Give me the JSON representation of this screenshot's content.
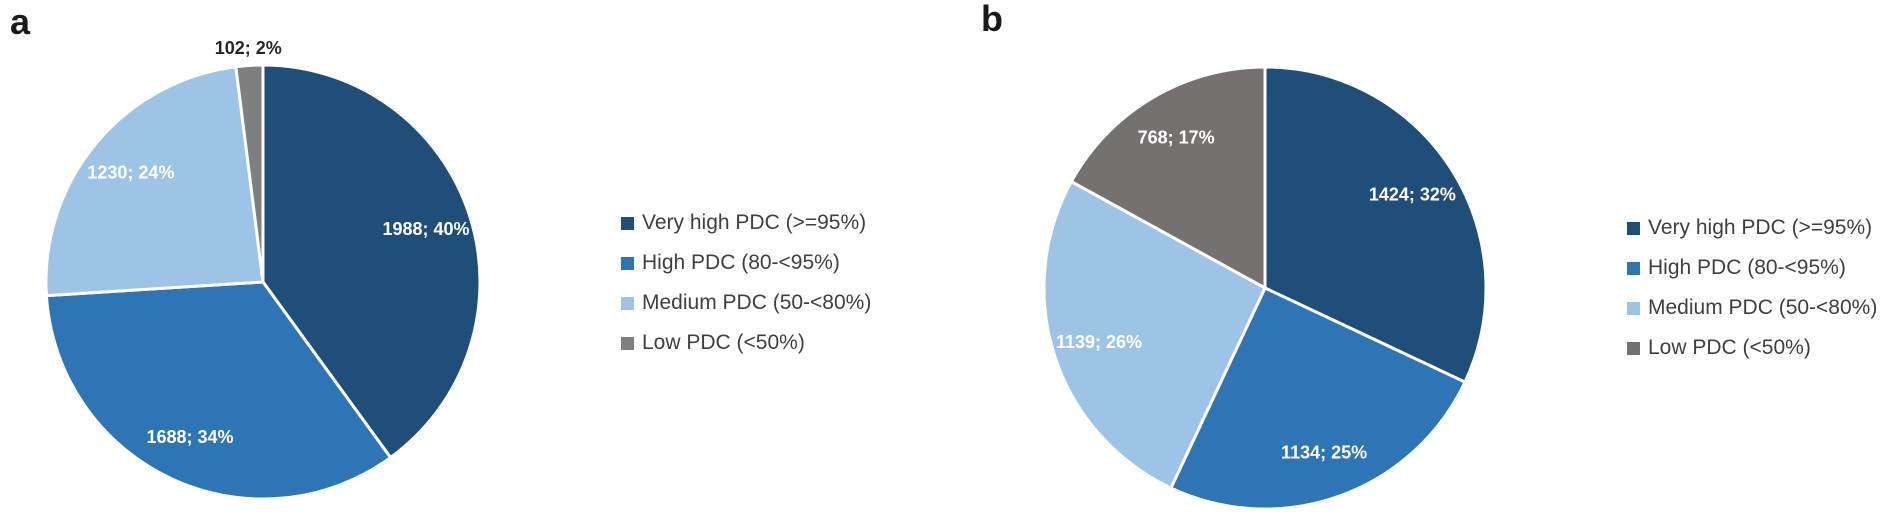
{
  "chart_data": [
    {
      "type": "pie",
      "panel_label": "a",
      "categories": [
        "Very high PDC (>=95%)",
        "High PDC (80-<95%)",
        "Medium PDC (50-<80%)",
        "Low PDC (<50%)"
      ],
      "values": [
        1988,
        1688,
        1230,
        102
      ],
      "percents": [
        40,
        34,
        24,
        2
      ],
      "data_labels": [
        "1988; 40%",
        "1688; 34%",
        "1230; 24%",
        "102; 2%"
      ],
      "colors": [
        "#1F4E79",
        "#2E75B6",
        "#9DC3E6",
        "#7F7F7F"
      ],
      "data_label_colors": [
        "#FFFFFF",
        "#FFFFFF",
        "#FFFFFF",
        "#262626"
      ],
      "label_placements": [
        "inside",
        "inside",
        "inside",
        "outside"
      ],
      "start_angle_deg": 0,
      "direction": "clockwise",
      "legend_position": "right",
      "separator_color": "#FFFFFF"
    },
    {
      "type": "pie",
      "panel_label": "b",
      "categories": [
        "Very high PDC (>=95%)",
        "High PDC (80-<95%)",
        "Medium PDC (50-<80%)",
        "Low PDC (<50%)"
      ],
      "values": [
        1424,
        1134,
        1139,
        768
      ],
      "percents": [
        32,
        25,
        26,
        17
      ],
      "data_labels": [
        "1424; 32%",
        "1134; 25%",
        "1139; 26%",
        "768; 17%"
      ],
      "colors": [
        "#1F4E79",
        "#2E75B6",
        "#9DC3E6",
        "#767171"
      ],
      "data_label_colors": [
        "#FFFFFF",
        "#FFFFFF",
        "#FFFFFF",
        "#FFFFFF"
      ],
      "label_placements": [
        "inside",
        "inside",
        "inside",
        "inside"
      ],
      "start_angle_deg": 0,
      "direction": "clockwise",
      "legend_position": "right",
      "separator_color": "#FFFFFF"
    }
  ]
}
